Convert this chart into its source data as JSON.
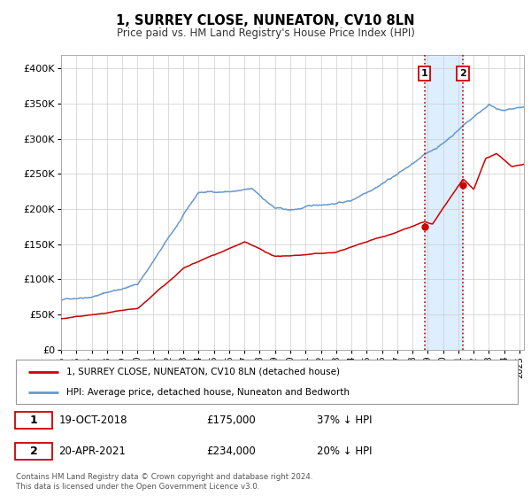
{
  "title": "1, SURREY CLOSE, NUNEATON, CV10 8LN",
  "subtitle": "Price paid vs. HM Land Registry's House Price Index (HPI)",
  "ytick_labels": [
    "£0",
    "£50K",
    "£100K",
    "£150K",
    "£200K",
    "£250K",
    "£300K",
    "£350K",
    "£400K"
  ],
  "yticks": [
    0,
    50000,
    100000,
    150000,
    200000,
    250000,
    300000,
    350000,
    400000
  ],
  "xlim_start": 1995.0,
  "xlim_end": 2025.3,
  "ylim": [
    0,
    420000
  ],
  "legend_line1": "1, SURREY CLOSE, NUNEATON, CV10 8LN (detached house)",
  "legend_line2": "HPI: Average price, detached house, Nuneaton and Bedworth",
  "sale1_label": "1",
  "sale1_date": "19-OCT-2018",
  "sale1_price": "£175,000",
  "sale1_hpi": "37% ↓ HPI",
  "sale2_label": "2",
  "sale2_date": "20-APR-2021",
  "sale2_price": "£234,000",
  "sale2_hpi": "20% ↓ HPI",
  "vline1_x": 2018.79,
  "vline2_x": 2021.3,
  "point1_x": 2018.79,
  "point1_y": 175000,
  "point2_x": 2021.3,
  "point2_y": 234000,
  "red_color": "#cc0000",
  "blue_color": "#6699cc",
  "shade_color": "#ddeeff",
  "grid_color": "#cccccc",
  "footer": "Contains HM Land Registry data © Crown copyright and database right 2024.\nThis data is licensed under the Open Government Licence v3.0."
}
